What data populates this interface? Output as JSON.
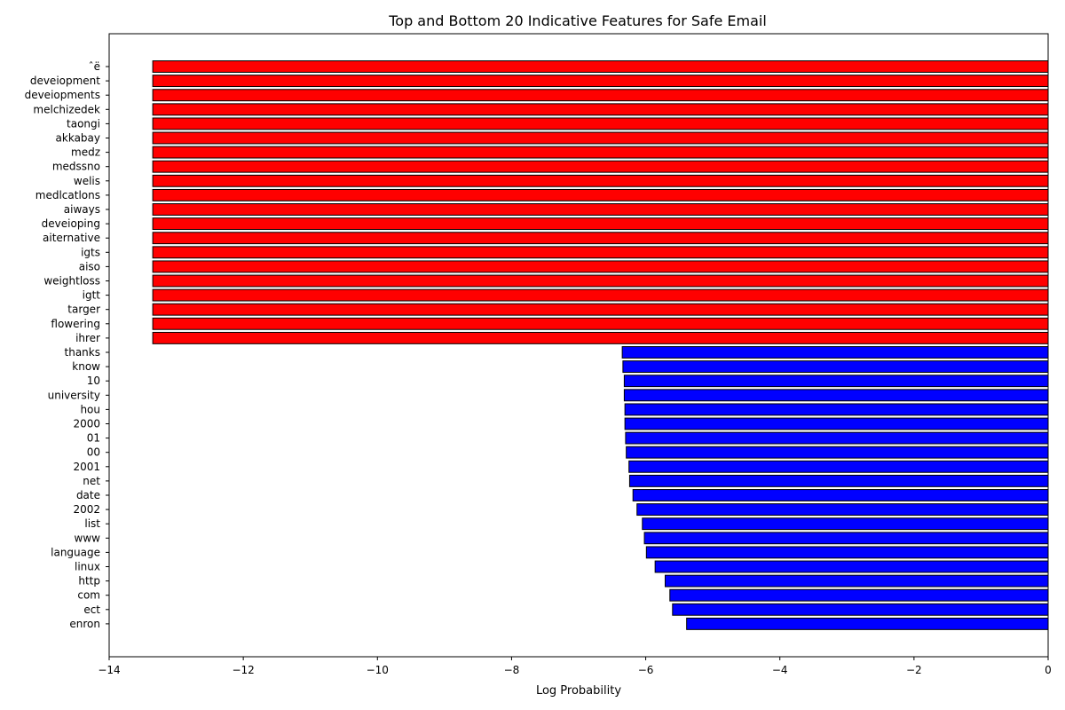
{
  "chart_data": {
    "type": "bar",
    "orientation": "horizontal",
    "title": "Top and Bottom 20 Indicative Features for Safe Email",
    "xlabel": "Log Probability",
    "ylabel": "",
    "xlim": [
      -14,
      0
    ],
    "xticks": [
      -14,
      -12,
      -10,
      -8,
      -6,
      -4,
      -2,
      0
    ],
    "grid": false,
    "series": [
      {
        "color": "#ff0000",
        "categories": [
          "ˆë",
          "deveiopment",
          "deveiopments",
          "melchizedek",
          "taongi",
          "akkabay",
          "medz",
          "medssno",
          "welis",
          "medlcatlons",
          "aiways",
          "deveioping",
          "aiternative",
          "igts",
          "aiso",
          "weightloss",
          "igtt",
          "targer",
          "flowering",
          "ihrer"
        ],
        "values": [
          -13.35,
          -13.35,
          -13.35,
          -13.35,
          -13.35,
          -13.35,
          -13.35,
          -13.35,
          -13.35,
          -13.35,
          -13.35,
          -13.35,
          -13.35,
          -13.35,
          -13.35,
          -13.35,
          -13.35,
          -13.35,
          -13.35,
          -13.35
        ]
      },
      {
        "color": "#0000ff",
        "categories": [
          "thanks",
          "know",
          "10",
          "university",
          "hou",
          "2000",
          "01",
          "00",
          "2001",
          "net",
          "date",
          "2002",
          "list",
          "www",
          "language",
          "linux",
          "http",
          "com",
          "ect",
          "enron"
        ],
        "values": [
          -6.35,
          -6.34,
          -6.32,
          -6.32,
          -6.31,
          -6.31,
          -6.3,
          -6.29,
          -6.25,
          -6.24,
          -6.19,
          -6.13,
          -6.05,
          -6.02,
          -5.99,
          -5.86,
          -5.71,
          -5.64,
          -5.6,
          -5.39
        ]
      }
    ]
  }
}
